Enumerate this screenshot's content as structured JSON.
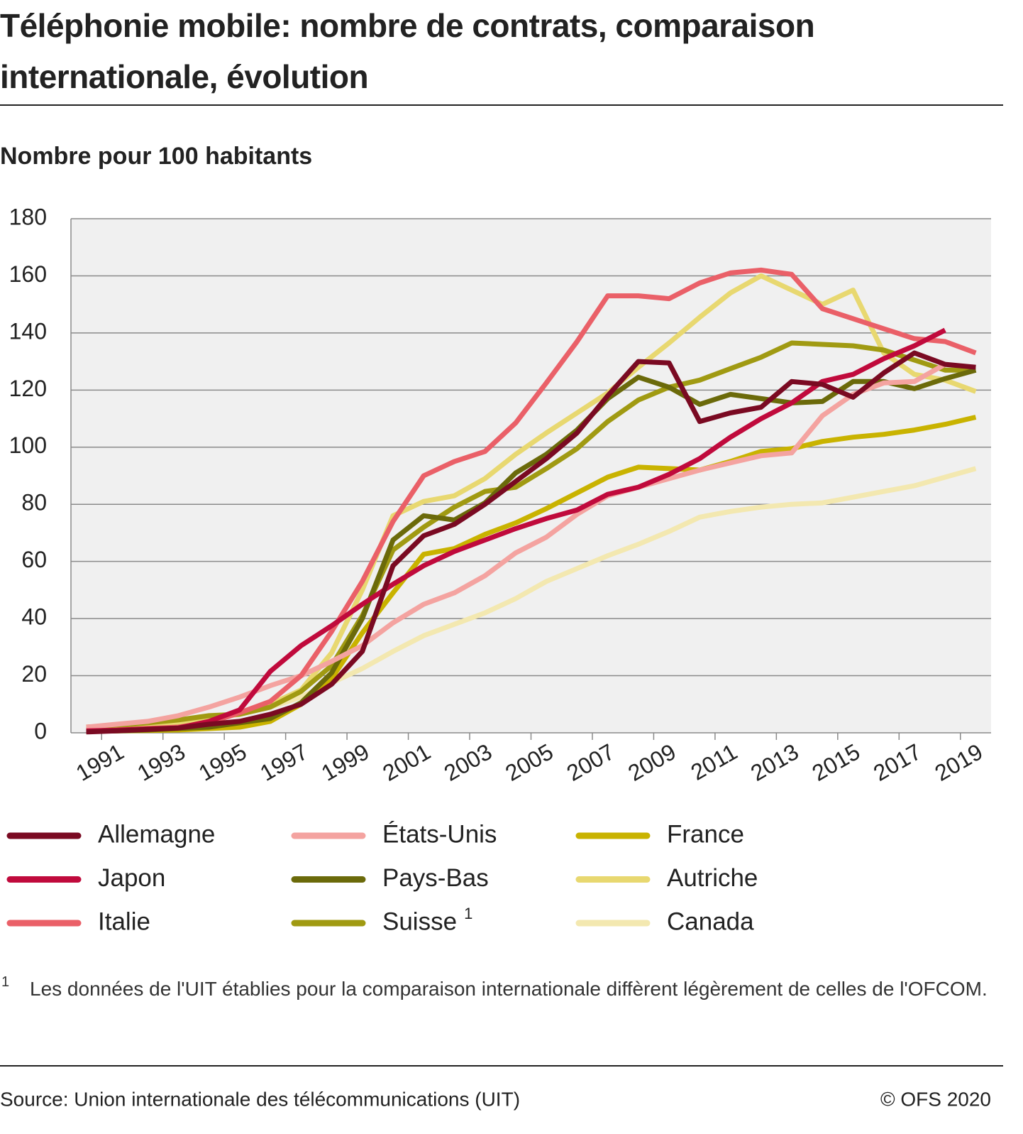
{
  "chart_data": {
    "type": "line",
    "title": "Téléphonie mobile: nombre de contrats, comparaison internationale, évolution",
    "ylabel": "Nombre pour 100 habitants",
    "categories": [
      null,
      "1991",
      null,
      "1993",
      null,
      "1995",
      null,
      "1997",
      null,
      "1999",
      null,
      "2001",
      null,
      "2003",
      null,
      "2005",
      null,
      "2007",
      null,
      "2009",
      null,
      "2011",
      null,
      "2013",
      null,
      "2015",
      null,
      "2017",
      null,
      "2019"
    ],
    "ylim": [
      0,
      180
    ],
    "yticks": [
      0,
      20,
      40,
      60,
      80,
      100,
      120,
      140,
      160,
      180
    ],
    "grid": true,
    "series": [
      {
        "name": "Allemagne",
        "color": "#7a0a22",
        "values": [
          0.3,
          0.7,
          1.2,
          1.7,
          3,
          4,
          6.5,
          10,
          17,
          28.5,
          58.5,
          69,
          73,
          80,
          88,
          96,
          105,
          118,
          130,
          129.5,
          109,
          112,
          114,
          123,
          122,
          117.5,
          126,
          133,
          129,
          128
        ]
      },
      {
        "name": "Japon",
        "color": "#c00a3c",
        "values": [
          0.7,
          0.9,
          1.4,
          1.7,
          4,
          8,
          21.5,
          30.5,
          37.5,
          45,
          52,
          58.5,
          63.5,
          67.5,
          71.5,
          75,
          78,
          83.5,
          86,
          90.5,
          96,
          103.5,
          110,
          115.5,
          123,
          125.5,
          131,
          135.5,
          141,
          null
        ]
      },
      {
        "name": "Italie",
        "color": "#ea6068",
        "values": [
          0.5,
          1,
          1.5,
          2,
          3.5,
          7,
          11,
          20,
          35.5,
          53,
          74,
          90,
          95,
          98.5,
          108.5,
          122.5,
          137,
          153,
          153,
          152,
          157.5,
          161,
          162,
          160.5,
          148.5,
          145,
          141.5,
          138,
          137,
          133
        ]
      },
      {
        "name": "États-Unis",
        "color": "#f4a3a0",
        "values": [
          2,
          3,
          4,
          6,
          9,
          12.5,
          16.5,
          20,
          25,
          30.5,
          38.5,
          45,
          49,
          55,
          63,
          68.5,
          76.5,
          83,
          86,
          89,
          92,
          94.5,
          97,
          98,
          111,
          118.5,
          122.5,
          123,
          129,
          null
        ]
      },
      {
        "name": "Pays-Bas",
        "color": "#6b6a0a",
        "values": [
          0.5,
          0.7,
          1,
          1.5,
          2,
          3.5,
          5,
          10.5,
          21,
          40,
          67.5,
          76,
          74.5,
          80.5,
          91,
          97.5,
          106,
          117,
          124.5,
          121,
          115,
          118.5,
          117,
          115.5,
          116,
          123,
          123,
          120.5,
          124,
          127
        ]
      },
      {
        "name": "Suisse",
        "color": "#a09a12",
        "values": [
          2,
          2.5,
          3.5,
          4.5,
          6,
          6.5,
          9,
          14.5,
          23.5,
          41,
          64,
          72,
          79,
          84.5,
          86,
          92.5,
          99.5,
          109,
          116.5,
          121,
          123.5,
          127.5,
          131.5,
          136.5,
          136,
          135.5,
          134,
          130.5,
          127,
          127
        ]
      },
      {
        "name": "France",
        "color": "#c9b300",
        "values": [
          0.5,
          0.7,
          0.8,
          1,
          1.5,
          2,
          4,
          10,
          19,
          35,
          49,
          62.5,
          64.5,
          69.5,
          73.5,
          78.5,
          84,
          89.5,
          93,
          92.5,
          92,
          95,
          98.5,
          99.5,
          102,
          103.5,
          104.5,
          106,
          108,
          110.5
        ]
      },
      {
        "name": "Autriche",
        "color": "#e8d870",
        "values": [
          1,
          1.5,
          2,
          3,
          5,
          6.5,
          10,
          15,
          28,
          50,
          76,
          81,
          83,
          89,
          97.5,
          105,
          112,
          119,
          128,
          136.5,
          145.5,
          154,
          160,
          155,
          150,
          155,
          133,
          125.5,
          123.5,
          119.5
        ]
      },
      {
        "name": "Canada",
        "color": "#f3e8b0",
        "values": [
          2,
          2.5,
          3,
          4,
          5,
          7,
          9,
          12.5,
          17.5,
          22.5,
          28.5,
          34,
          38,
          42,
          47,
          53,
          57.5,
          62,
          66,
          70.5,
          75.5,
          77.5,
          79,
          80,
          80.5,
          82.5,
          84.5,
          86.5,
          89.5,
          92.5
        ]
      }
    ],
    "footnote": {
      "marker": "1",
      "text": "Les données de l'UIT établies pour la comparaison internationale diffèrent légèrement de celles de l'OFCOM."
    },
    "source": "Source: Union internationale des télécommunications (UIT)",
    "copyright": "© OFS 2020"
  }
}
